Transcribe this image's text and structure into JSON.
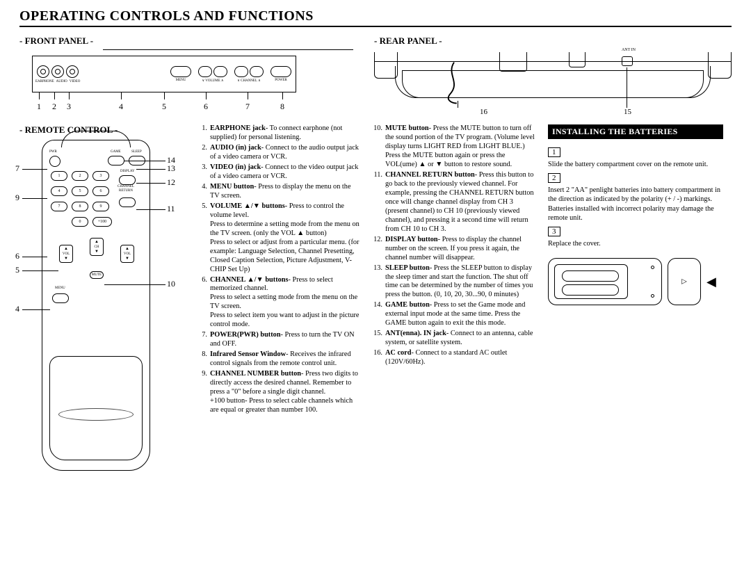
{
  "title": "OPERATING CONTROLS AND FUNCTIONS",
  "frontPanel": {
    "heading": "- FRONT PANEL -",
    "jackLabels": [
      "EARPHONE",
      "AUDIO",
      "VIDEO"
    ],
    "btnLabels": [
      "MENU",
      "∨ VOLUME ∧",
      "∨ CHANNEL ∧",
      "POWER"
    ],
    "numbers": [
      "1",
      "2",
      "3",
      "4",
      "5",
      "6",
      "7",
      "8"
    ]
  },
  "rearPanel": {
    "heading": "- REAR PANEL -",
    "antLabel": "ANT IN",
    "n16": "16",
    "n15": "15"
  },
  "remote": {
    "heading": "- REMOTE CONTROL -",
    "topLabels": {
      "pwr": "PWR",
      "game": "GAME",
      "sleep": "SLEEP",
      "display": "DISPLAY",
      "channel": "CHANNEL",
      "return": "RETURN",
      "menu": "MENU",
      "mute": "MUTE",
      "ch": "CH",
      "vol": "VOL",
      "plus100": "+100"
    },
    "nums": [
      "1",
      "2",
      "3",
      "4",
      "5",
      "6",
      "7",
      "8",
      "9",
      "0"
    ],
    "arrows": {
      "up": "▲",
      "down": "▼"
    },
    "callouts": {
      "n4": "4",
      "n5": "5",
      "n6": "6",
      "n7": "7",
      "n9": "9",
      "n10": "10",
      "n11": "11",
      "n12": "12",
      "n13": "13",
      "n14": "14"
    }
  },
  "descriptions": {
    "col1": [
      {
        "n": "1.",
        "b": "EARPHONE jack",
        "t": "- To connect earphone (not supplied) for personal listening."
      },
      {
        "n": "2.",
        "b": "AUDIO (in) jack",
        "t": "- Connect to the audio output jack of a video camera or VCR."
      },
      {
        "n": "3.",
        "b": "VIDEO (in) jack",
        "t": "- Connect to the video output jack of a video camera or VCR."
      },
      {
        "n": "4.",
        "b": "MENU button",
        "t": "- Press to display the menu on the TV screen."
      },
      {
        "n": "5.",
        "b": "VOLUME ▲/▼ buttons",
        "t": "- Press to control the volume level.\nPress to determine a setting mode from the menu on the TV screen. (only the VOL ▲ button)\nPress to select or adjust from a particular menu. (for example: Language Selection, Channel Presetting, Closed Caption Selection, Picture Adjustment, V-CHIP Set Up)"
      },
      {
        "n": "6.",
        "b": "CHANNEL ▲/▼ buttons",
        "t": "- Press to select memorized channel.\nPress to select a setting mode from the menu on the TV screen.\nPress to select item you want to adjust in the picture control mode."
      },
      {
        "n": "7.",
        "b": "POWER(PWR) button",
        "t": "- Press to turn the TV ON and OFF."
      },
      {
        "n": "8.",
        "b": "Infrared Sensor Window",
        "t": "- Receives the infrared control signals from the remote control unit."
      },
      {
        "n": "9.",
        "b": "CHANNEL NUMBER button",
        "t": "- Press two digits to directly access the desired channel. Remember to press a \"0\" before a single digit channel.\n+100 button- Press to select cable channels which are equal or greater than number 100."
      }
    ],
    "col2": [
      {
        "n": "10.",
        "b": "MUTE button",
        "t": "- Press the MUTE button to turn off the sound portion of the TV program. (Volume level display turns LIGHT RED from LIGHT BLUE.) Press the MUTE button again or press the VOL(ume) ▲ or ▼ button to restore sound."
      },
      {
        "n": "11.",
        "b": "CHANNEL RETURN button",
        "t": "- Press this button to go back to the previously viewed channel. For example, pressing the CHANNEL RETURN button once will change channel display from CH 3 (present channel) to CH 10 (previously viewed channel), and pressing it a second time will return from CH 10 to CH 3."
      },
      {
        "n": "12.",
        "b": "DISPLAY button",
        "t": "- Press to display the channel number on the screen. If you press it again, the channel number will disappear."
      },
      {
        "n": "13.",
        "b": "SLEEP button",
        "t": "- Press the SLEEP button to display the sleep timer and start the function. The shut off time can be determined by the number of times you press the button. (0, 10, 20, 30...90, 0 minutes)"
      },
      {
        "n": "14.",
        "b": "GAME button",
        "t": "- Press to set the Game mode and external input mode at the same time. Press the GAME button again to exit the this mode."
      },
      {
        "n": "15.",
        "b": "ANT(enna). IN jack",
        "t": "- Connect to an antenna, cable system, or satellite system."
      },
      {
        "n": "16.",
        "b": "AC cord",
        "t": "- Connect to a standard AC outlet (120V/60Hz)."
      }
    ]
  },
  "batteries": {
    "title": "INSTALLING THE BATTERIES",
    "steps": [
      {
        "n": "1",
        "t": "Slide the battery compartment cover on the remote unit."
      },
      {
        "n": "2",
        "t": "Insert 2 \"AA\" penlight batteries into battery compartment in the direction as indicated by the polarity (+ / -) markings. Batteries installed with incorrect polarity may damage the remote unit."
      },
      {
        "n": "3",
        "t": "Replace the cover."
      }
    ]
  }
}
